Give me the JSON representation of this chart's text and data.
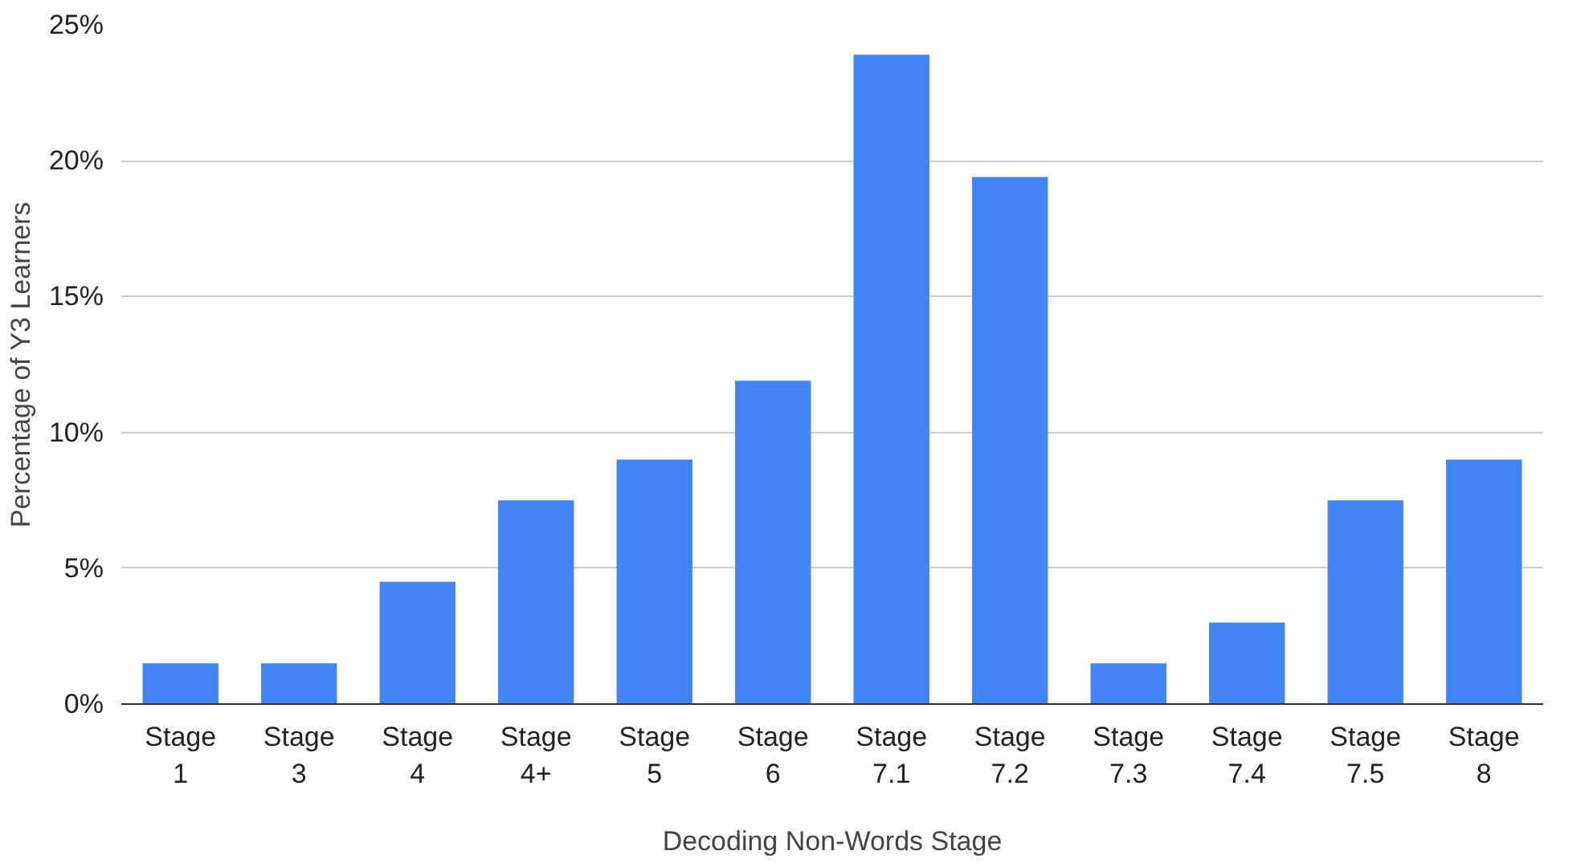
{
  "chart_data": {
    "type": "bar",
    "xlabel": "Decoding Non-Words Stage",
    "ylabel": "Percentage of Y3 Learners",
    "categories": [
      "Stage 1",
      "Stage 3",
      "Stage 4",
      "Stage 4+",
      "Stage 5",
      "Stage 6",
      "Stage 7.1",
      "Stage 7.2",
      "Stage 7.3",
      "Stage 7.4",
      "Stage 7.5",
      "Stage 8"
    ],
    "values": [
      1.5,
      1.5,
      4.5,
      7.5,
      9,
      11.9,
      23.9,
      19.4,
      1.5,
      3,
      7.5,
      9
    ],
    "color": "#4285f4",
    "ylim": [
      0,
      25
    ],
    "yticks": [
      {
        "value": 0,
        "label": "0%"
      },
      {
        "value": 5,
        "label": "5%"
      },
      {
        "value": 10,
        "label": "10%"
      },
      {
        "value": 15,
        "label": "15%"
      },
      {
        "value": 20,
        "label": "20%"
      },
      {
        "value": 25,
        "label": "25%"
      }
    ],
    "grid": "y"
  }
}
